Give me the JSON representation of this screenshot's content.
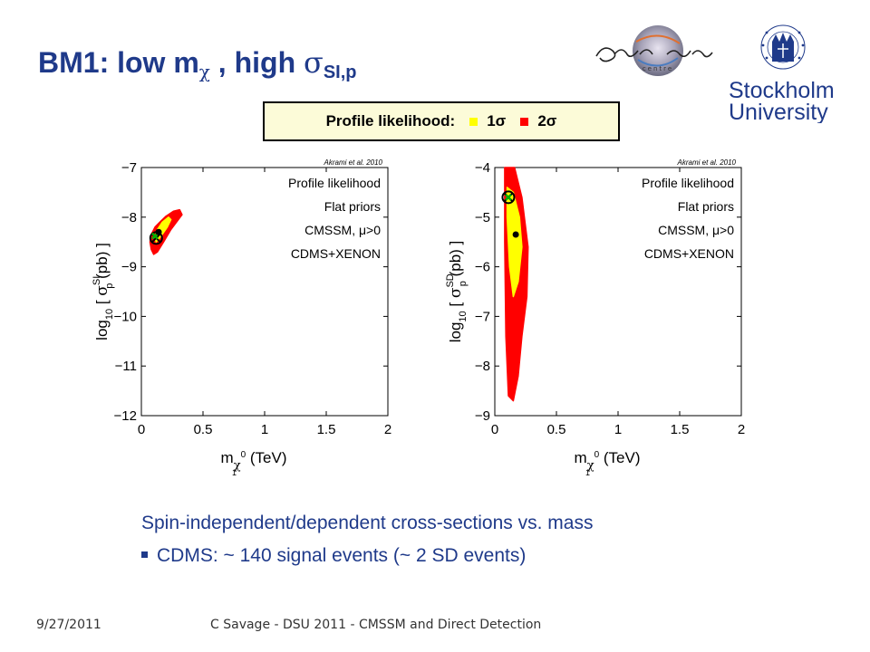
{
  "slide": {
    "title_prefix": "BM1:  low m",
    "title_chi": "χ",
    "title_mid": " , high ",
    "title_sigma": "σ",
    "title_sub": "SI,p",
    "legend": {
      "label": "Profile likelihood:",
      "one_sigma": "1σ",
      "two_sigma": "2σ",
      "one_sigma_color": "#ffff00",
      "two_sigma_color": "#ff0000"
    },
    "caption": "Spin-independent/dependent cross-sections vs. mass",
    "bullet": "CDMS:  ~ 140 signal events (~ 2 SD events)",
    "footer_date": "9/27/2011",
    "footer_text": "C Savage - DSU 2011 - CMSSM and Direct Detection",
    "logos": {
      "oskar_klein": "Oskar Klein centre",
      "stockholm_line1": "Stockholm",
      "stockholm_line2": "University"
    }
  },
  "chart_data": [
    {
      "type": "scatter",
      "citation": "Akrami et al. 2010",
      "annotations": [
        "Profile likelihood",
        "Flat priors",
        "CMSSM, μ>0",
        "CDMS+XENON"
      ],
      "xlabel": "m_χ⁰₁ (TeV)",
      "ylabel": "log10 [ σ_p^SI (pb) ]",
      "xlim": [
        0,
        2
      ],
      "ylim": [
        -12,
        -7
      ],
      "xticks": [
        0,
        0.5,
        1,
        1.5,
        2
      ],
      "xtick_labels": [
        "0",
        "0.5",
        "1",
        "1.5",
        "2"
      ],
      "yticks": [
        -12,
        -11,
        -10,
        -9,
        -8,
        -7
      ],
      "ytick_labels": [
        "−12",
        "−11",
        "−10",
        "−9",
        "−8",
        "−7"
      ],
      "series": [
        {
          "name": "2σ",
          "region_x": [
            0.1,
            0.13,
            0.18,
            0.24,
            0.3,
            0.33,
            0.31,
            0.26,
            0.2,
            0.15,
            0.11,
            0.08,
            0.07,
            0.08
          ],
          "region_y": [
            -8.75,
            -8.7,
            -8.5,
            -8.25,
            -8.05,
            -7.95,
            -7.85,
            -7.88,
            -7.98,
            -8.1,
            -8.2,
            -8.35,
            -8.5,
            -8.65
          ]
        },
        {
          "name": "1σ",
          "region_x": [
            0.12,
            0.16,
            0.21,
            0.24,
            0.22,
            0.17,
            0.13,
            0.11
          ],
          "region_y": [
            -8.5,
            -8.38,
            -8.2,
            -8.05,
            -8.0,
            -8.1,
            -8.25,
            -8.4
          ]
        }
      ],
      "best_fit": {
        "x": 0.12,
        "y": -8.42
      },
      "mean": {
        "x": 0.14,
        "y": -8.3
      },
      "benchmark": {
        "x": 0.11,
        "y": -8.38
      }
    },
    {
      "type": "scatter",
      "citation": "Akrami et al. 2010",
      "annotations": [
        "Profile likelihood",
        "Flat priors",
        "CMSSM, μ>0",
        "CDMS+XENON"
      ],
      "xlabel": "m_χ⁰₁ (TeV)",
      "ylabel": "log10 [ σ_p^SD (pb) ]",
      "xlim": [
        0,
        2
      ],
      "ylim": [
        -9,
        -4
      ],
      "xticks": [
        0,
        0.5,
        1,
        1.5,
        2
      ],
      "xtick_labels": [
        "0",
        "0.5",
        "1",
        "1.5",
        "2"
      ],
      "yticks": [
        -9,
        -8,
        -7,
        -6,
        -5,
        -4
      ],
      "ytick_labels": [
        "−9",
        "−8",
        "−7",
        "−6",
        "−5",
        "−4"
      ],
      "series": [
        {
          "name": "2σ",
          "region_x": [
            0.08,
            0.16,
            0.22,
            0.27,
            0.26,
            0.22,
            0.19,
            0.15,
            0.11,
            0.09,
            0.08
          ],
          "region_y": [
            -4.0,
            -4.0,
            -4.6,
            -5.6,
            -6.6,
            -7.4,
            -8.2,
            -8.7,
            -8.6,
            -7.4,
            -5.5
          ]
        },
        {
          "name": "1σ",
          "region_x": [
            0.1,
            0.15,
            0.2,
            0.22,
            0.19,
            0.15,
            0.12,
            0.1
          ],
          "region_y": [
            -4.4,
            -4.5,
            -5.0,
            -5.6,
            -6.3,
            -6.6,
            -6.0,
            -5.0
          ]
        }
      ],
      "best_fit": {
        "x": 0.11,
        "y": -4.6
      },
      "mean": {
        "x": 0.17,
        "y": -5.35
      },
      "benchmark": {
        "x": 0.11,
        "y": -4.6
      }
    }
  ]
}
